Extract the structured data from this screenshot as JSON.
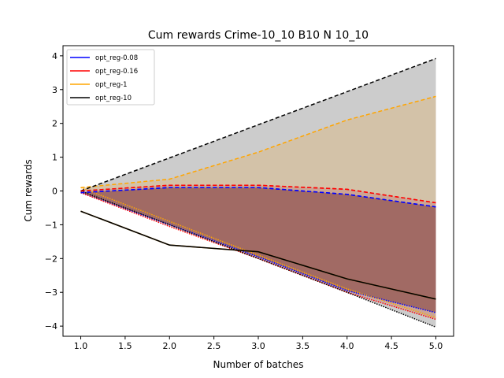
{
  "chart_data": {
    "type": "line",
    "title": "Cum rewards Crime-10_10 B10 N 10_10",
    "xlabel": "Number of batches",
    "ylabel": "Cum rewards",
    "xlim": [
      0.8,
      5.2
    ],
    "ylim": [
      -4.3,
      4.3
    ],
    "xticks": [
      "1.0",
      "1.5",
      "2.0",
      "2.5",
      "3.0",
      "3.5",
      "4.0",
      "4.5",
      "5.0"
    ],
    "yticks": [
      "-4",
      "-3",
      "-2",
      "-1",
      "0",
      "1",
      "2",
      "3",
      "4"
    ],
    "legend_position": "top-left",
    "grid": false,
    "x": [
      1,
      2,
      3,
      4,
      5
    ],
    "series": [
      {
        "name": "opt_reg-0.08",
        "color": "#0000ff",
        "mean": [
          -0.05,
          0.1,
          0.1,
          -0.1,
          -0.47
        ],
        "upper": [
          -0.05,
          0.1,
          0.1,
          -0.1,
          -0.47
        ],
        "lower": [
          -0.05,
          -1.0,
          -1.95,
          -2.95,
          -3.6
        ],
        "band_color": "#8b4a4a"
      },
      {
        "name": "opt_reg-0.16",
        "color": "#ff0000",
        "mean": [
          0.0,
          0.17,
          0.17,
          0.05,
          -0.35
        ],
        "upper": [
          0.0,
          0.17,
          0.17,
          0.05,
          -0.35
        ],
        "lower": [
          -0.05,
          -1.05,
          -2.0,
          -3.0,
          -3.8
        ],
        "band_color": "#c07070"
      },
      {
        "name": "opt_reg-1",
        "color": "#ffa500",
        "mean": [
          -0.6,
          -1.6,
          -1.8,
          -2.6,
          -3.2
        ],
        "upper": [
          0.1,
          0.35,
          1.15,
          2.1,
          2.8
        ],
        "lower": [
          0.1,
          -0.9,
          -1.9,
          -2.9,
          -3.75
        ],
        "band_color": "#d9b98a"
      },
      {
        "name": "opt_reg-10",
        "color": "#000000",
        "mean": [
          -0.6,
          -1.6,
          -1.8,
          -2.6,
          -3.2
        ],
        "upper": [
          0.0,
          0.98,
          1.96,
          2.94,
          3.92
        ],
        "lower": [
          0.0,
          -1.0,
          -2.0,
          -3.0,
          -4.03
        ],
        "band_color": "#bbbbbb"
      }
    ]
  }
}
